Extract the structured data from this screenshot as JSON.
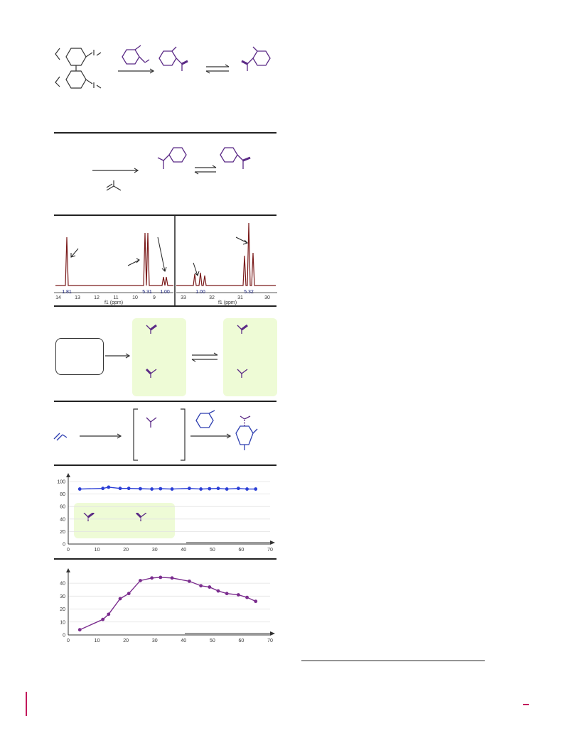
{
  "nmr": {
    "left": {
      "integrals": [
        "1.81",
        "5.31",
        "1.00"
      ],
      "ticks": [
        "14",
        "13",
        "12",
        "11",
        "10",
        "9"
      ],
      "xlabel": "f1 (ppm)"
    },
    "right": {
      "integrals": [
        "1.00",
        "5.32"
      ],
      "ticks": [
        "33",
        "32",
        "31",
        "30"
      ],
      "xlabel": "f1 (ppm)"
    }
  },
  "chart_data": [
    {
      "type": "line",
      "x": [
        4,
        12,
        14,
        18,
        21,
        25,
        29,
        32,
        36,
        42,
        46,
        49,
        52,
        55,
        59,
        62,
        65
      ],
      "series": [
        {
          "values": [
            88,
            89,
            91,
            89,
            89,
            88.5,
            88,
            88.5,
            88,
            89,
            88,
            88.5,
            89,
            88,
            89,
            88,
            88
          ]
        }
      ],
      "xlim": [
        0,
        70
      ],
      "ylim": [
        0,
        100
      ],
      "xticks": [
        "0",
        "10",
        "20",
        "30",
        "40",
        "50",
        "60",
        "70"
      ],
      "yticks": [
        "0",
        "20",
        "40",
        "60",
        "80",
        "100"
      ],
      "color": "#2b3fd6",
      "grid": true
    },
    {
      "type": "line",
      "x": [
        4,
        12,
        14,
        18,
        21,
        25,
        29,
        32,
        36,
        42,
        46,
        49,
        52,
        55,
        59,
        62,
        65
      ],
      "series": [
        {
          "values": [
            4,
            12,
            16,
            28,
            32,
            42,
            44,
            44.5,
            44,
            41.5,
            38,
            37,
            34,
            32,
            31,
            29,
            26
          ]
        }
      ],
      "xlim": [
        0,
        70
      ],
      "ylim": [
        0,
        45
      ],
      "xticks": [
        "0",
        "10",
        "20",
        "30",
        "40",
        "50",
        "60",
        "70"
      ],
      "yticks": [
        "0",
        "10",
        "20",
        "30",
        "40"
      ],
      "color": "#7b2d8e",
      "grid": true
    }
  ],
  "colors": {
    "rule": "#222222",
    "green_panel": "#eefbd6",
    "purple": "#5b2a86",
    "blue": "#2e3fb0",
    "nmr_trace": "#7a1a1a",
    "page_mark": "#c2185b"
  }
}
